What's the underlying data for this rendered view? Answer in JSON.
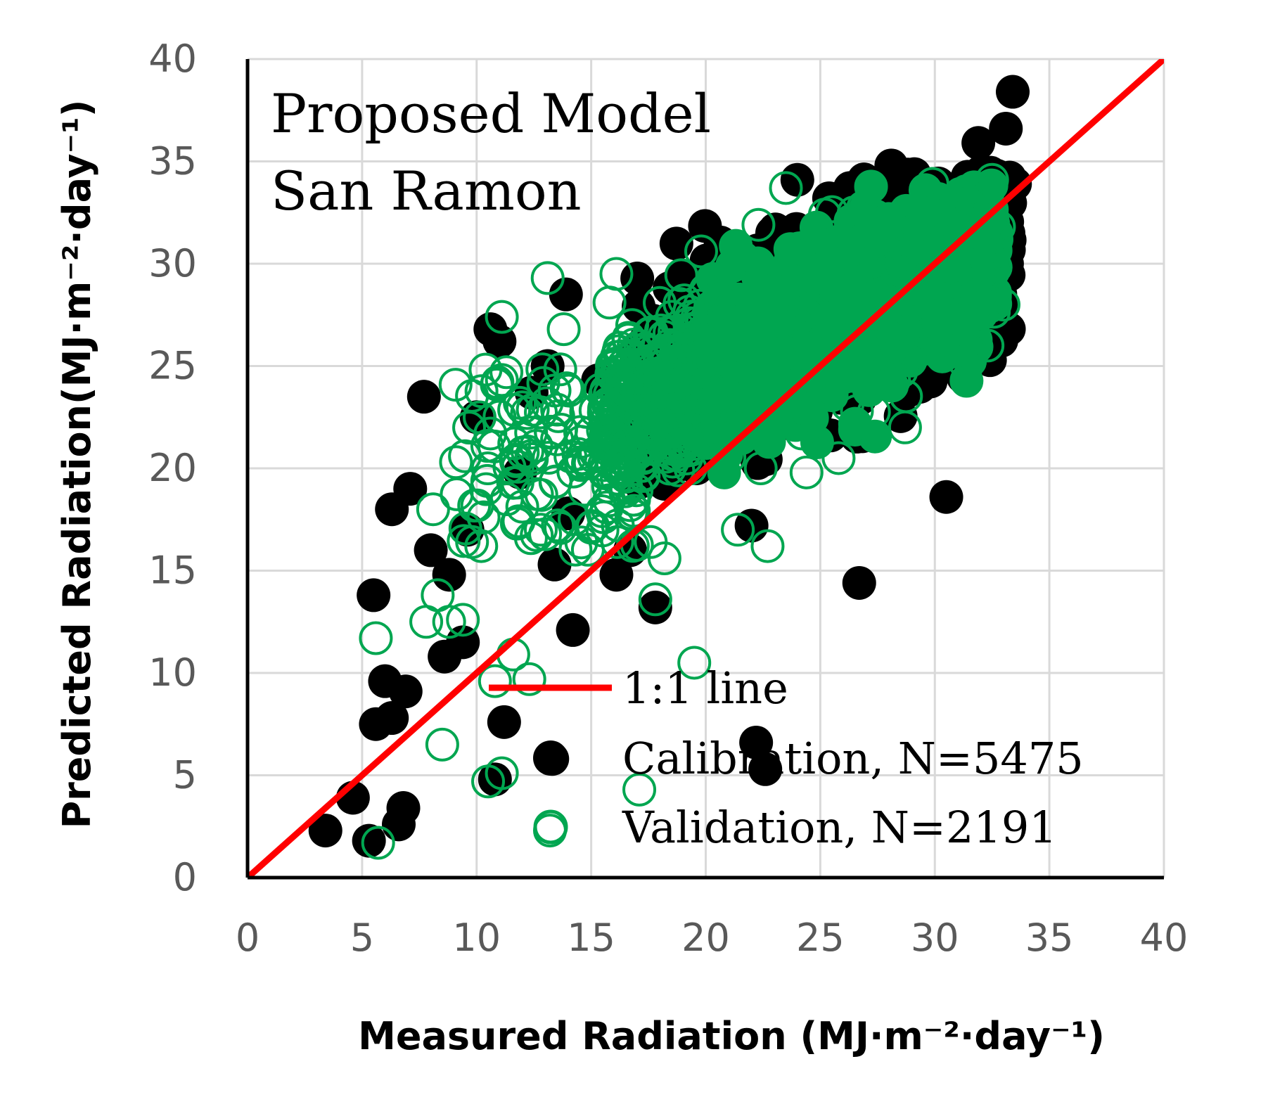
{
  "chart_data": {
    "type": "scatter",
    "title": "Proposed Model",
    "subtitle": "San Ramon",
    "xlabel": "Measured Radiation (MJ·m⁻²·day⁻¹)",
    "ylabel": "Predicted Radiation(MJ·m⁻²·day⁻¹)",
    "xlim": [
      0,
      40
    ],
    "ylim": [
      0,
      40
    ],
    "xticks": [
      "0",
      "5",
      "10",
      "15",
      "20",
      "25",
      "30",
      "35",
      "40"
    ],
    "yticks": [
      "0",
      "5",
      "10",
      "15",
      "20",
      "25",
      "30",
      "35",
      "40"
    ],
    "grid": true,
    "legend_position": "bottom-right",
    "one_to_one_line": {
      "name": "1:1 line",
      "color": "#ff0000",
      "x": [
        0,
        40
      ],
      "y": [
        0,
        40
      ]
    },
    "series": [
      {
        "name": "Calibration, N=5475",
        "marker": "filled-circle",
        "color": "#000000",
        "points": [
          [
            3.4,
            2.3
          ],
          [
            4.6,
            3.9
          ],
          [
            5.3,
            1.8
          ],
          [
            6.8,
            3.4
          ],
          [
            6.6,
            2.6
          ],
          [
            5.6,
            7.5
          ],
          [
            6.3,
            7.8
          ],
          [
            6.0,
            9.6
          ],
          [
            6.9,
            9.1
          ],
          [
            5.5,
            13.8
          ],
          [
            6.3,
            18.0
          ],
          [
            7.1,
            19.0
          ],
          [
            7.7,
            23.5
          ],
          [
            8.0,
            16.0
          ],
          [
            8.8,
            14.8
          ],
          [
            8.6,
            10.8
          ],
          [
            9.4,
            11.5
          ],
          [
            9.6,
            17.0
          ],
          [
            10.0,
            22.5
          ],
          [
            10.6,
            26.8
          ],
          [
            11.0,
            26.2
          ],
          [
            11.2,
            7.6
          ],
          [
            10.8,
            4.8
          ],
          [
            11.9,
            19.8
          ],
          [
            12.4,
            23.7
          ],
          [
            13.1,
            25.0
          ],
          [
            13.4,
            15.3
          ],
          [
            13.9,
            28.5
          ],
          [
            14.0,
            17.8
          ],
          [
            14.2,
            12.1
          ],
          [
            13.3,
            5.8
          ],
          [
            15.3,
            24.3
          ],
          [
            16.1,
            14.8
          ],
          [
            16.7,
            16.0
          ],
          [
            17.8,
            13.2
          ],
          [
            17.3,
            24.5
          ],
          [
            18.1,
            21.8
          ],
          [
            18.9,
            23.4
          ],
          [
            19.6,
            20.0
          ],
          [
            20.1,
            25.1
          ],
          [
            20.8,
            21.8
          ],
          [
            21.3,
            27.5
          ],
          [
            22.2,
            6.6
          ],
          [
            22.0,
            17.2
          ],
          [
            22.6,
            5.3
          ],
          [
            22.9,
            31.5
          ],
          [
            23.6,
            26.0
          ],
          [
            24.0,
            34.1
          ],
          [
            24.9,
            24.5
          ],
          [
            25.1,
            29.3
          ],
          [
            25.7,
            27.0
          ],
          [
            26.3,
            33.7
          ],
          [
            26.7,
            14.4
          ],
          [
            27.0,
            30.9
          ],
          [
            27.5,
            25.8
          ],
          [
            28.1,
            34.8
          ],
          [
            28.8,
            28.0
          ],
          [
            29.4,
            31.4
          ],
          [
            30.0,
            33.1
          ],
          [
            30.5,
            18.6
          ],
          [
            30.8,
            28.6
          ],
          [
            31.4,
            26.6
          ],
          [
            31.9,
            35.9
          ],
          [
            32.2,
            33.6
          ],
          [
            32.7,
            34.3
          ],
          [
            33.1,
            36.6
          ],
          [
            33.4,
            38.4
          ],
          [
            33.5,
            33.9
          ],
          [
            32.6,
            30.9
          ],
          [
            33.2,
            31.5
          ],
          [
            32.0,
            27.5
          ],
          [
            31.2,
            24.8
          ],
          [
            29.8,
            24.4
          ]
        ]
      },
      {
        "name": "Validation, N=2191",
        "marker": "open-circle",
        "color": "#00a650",
        "points": [
          [
            5.7,
            1.7
          ],
          [
            5.6,
            11.7
          ],
          [
            7.8,
            12.5
          ],
          [
            8.1,
            18.0
          ],
          [
            8.8,
            12.5
          ],
          [
            8.3,
            13.8
          ],
          [
            9.4,
            12.6
          ],
          [
            8.5,
            6.5
          ],
          [
            9.1,
            20.3
          ],
          [
            9.8,
            16.4
          ],
          [
            10.2,
            16.2
          ],
          [
            10.6,
            21.7
          ],
          [
            10.5,
            4.7
          ],
          [
            11.1,
            5.1
          ],
          [
            11.1,
            27.4
          ],
          [
            11.3,
            24.7
          ],
          [
            10.8,
            9.6
          ],
          [
            11.6,
            10.9
          ],
          [
            12.3,
            9.7
          ],
          [
            12.2,
            22.7
          ],
          [
            12.8,
            17.0
          ],
          [
            13.4,
            23.8
          ],
          [
            13.1,
            29.3
          ],
          [
            13.2,
            2.3
          ],
          [
            13.8,
            26.8
          ],
          [
            14.6,
            20.5
          ],
          [
            15.0,
            17.1
          ],
          [
            15.8,
            28.1
          ],
          [
            16.1,
            29.5
          ],
          [
            16.7,
            18.2
          ],
          [
            17.6,
            16.4
          ],
          [
            17.1,
            4.3
          ],
          [
            17.8,
            13.6
          ],
          [
            18.2,
            15.6
          ],
          [
            18.8,
            19.9
          ],
          [
            19.5,
            10.5
          ],
          [
            19.8,
            30.6
          ],
          [
            20.3,
            22.1
          ],
          [
            20.6,
            28.4
          ],
          [
            21.4,
            17.0
          ],
          [
            21.8,
            26.2
          ],
          [
            22.3,
            31.9
          ],
          [
            22.7,
            16.2
          ],
          [
            23.1,
            25.0
          ],
          [
            23.5,
            33.7
          ],
          [
            24.2,
            21.7
          ],
          [
            24.6,
            27.8
          ],
          [
            25.2,
            32.4
          ],
          [
            25.8,
            20.5
          ],
          [
            26.3,
            29.0
          ],
          [
            27.0,
            24.3
          ],
          [
            27.4,
            31.1
          ],
          [
            28.1,
            26.8
          ],
          [
            28.7,
            22.0
          ],
          [
            29.1,
            31.6
          ],
          [
            29.4,
            25.8
          ],
          [
            29.9,
            33.9
          ],
          [
            30.4,
            27.6
          ],
          [
            30.8,
            30.9
          ],
          [
            31.3,
            25.2
          ],
          [
            31.6,
            33.0
          ],
          [
            32.1,
            29.4
          ],
          [
            32.5,
            34.1
          ],
          [
            32.8,
            31.8
          ],
          [
            33.0,
            28.0
          ],
          [
            32.3,
            26.0
          ],
          [
            20.1,
            24.0
          ],
          [
            20.9,
            20.7
          ],
          [
            21.7,
            23.6
          ],
          [
            22.4,
            20.0
          ],
          [
            23.8,
            23.1
          ],
          [
            24.4,
            19.8
          ],
          [
            25.5,
            25.6
          ],
          [
            26.6,
            22.8
          ],
          [
            27.7,
            28.7
          ],
          [
            28.9,
            25.4
          ],
          [
            30.2,
            29.7
          ],
          [
            31.1,
            28.3
          ]
        ]
      }
    ]
  }
}
